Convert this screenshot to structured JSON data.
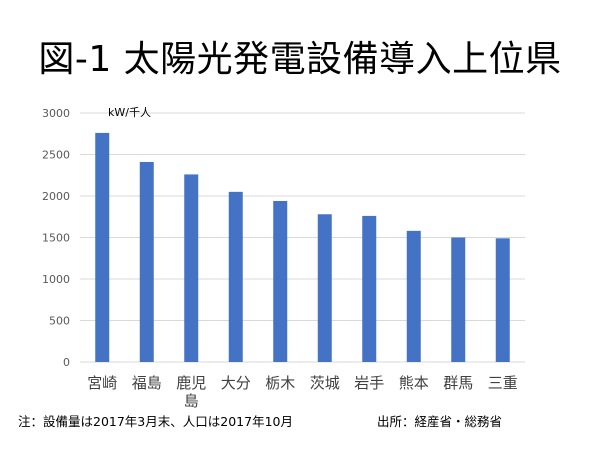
{
  "chart_data": {
    "type": "bar",
    "title": "図-1 太陽光発電設備導入上位県",
    "unit": "kW/千人",
    "categories": [
      "宮崎",
      "福島",
      "鹿児島",
      "大分",
      "栃木",
      "茨城",
      "岩手",
      "熊本",
      "群馬",
      "三重"
    ],
    "values": [
      2760,
      2410,
      2260,
      2050,
      1940,
      1780,
      1760,
      1580,
      1500,
      1490
    ],
    "ylim": [
      0,
      3000
    ],
    "yticks": [
      0,
      500,
      1000,
      1500,
      2000,
      2500,
      3000
    ],
    "grid": true,
    "legend": "none",
    "bar_color": "#4472C4",
    "grid_color": "#D9D9D9"
  },
  "footer": {
    "note": "注：設備量は2017年3月末、人口は2017年10月",
    "source": "出所：経産省・総務省"
  }
}
